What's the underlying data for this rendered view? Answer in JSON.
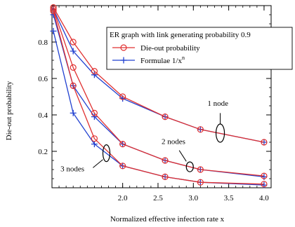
{
  "chart_data": {
    "type": "line",
    "title": "",
    "xlabel": "Normalized effective infection rate x",
    "ylabel": "Die-out probability",
    "xlim": [
      1.0,
      4.1
    ],
    "ylim": [
      0.0,
      1.0
    ],
    "x_ticks": [
      2.0,
      2.5,
      3.0,
      3.5,
      4.0
    ],
    "x_tick_labels": [
      "2.0",
      "2.5",
      "3.0",
      "3.5",
      "4.0"
    ],
    "y_ticks": [
      0.2,
      0.4,
      0.6,
      0.8
    ],
    "y_tick_labels": [
      "0.2",
      "0.4",
      "0.6",
      "0.8"
    ],
    "colors": {
      "die_out": "#e03030",
      "formula": "#2040d0"
    },
    "legend": {
      "title": "ER graph with link generating probability 0.9",
      "placement": "top-right",
      "entries": [
        {
          "label": "Die-out probability",
          "marker": "circle",
          "series": "die-out"
        },
        {
          "label": "Formulae 1/x",
          "sup": "n",
          "marker": "plus",
          "series": "formula"
        }
      ]
    },
    "annotations": [
      {
        "text": "1 node",
        "data_x": 3.2,
        "data_y": 0.45
      },
      {
        "text": "2 nodes",
        "data_x": 2.55,
        "data_y": 0.24
      },
      {
        "text": "3 nodes",
        "data_x": 1.12,
        "data_y": 0.09
      }
    ],
    "series": [
      {
        "group": "1 node",
        "kind": "die-out",
        "x": [
          1.02,
          1.3,
          1.6,
          2.0,
          2.6,
          3.1,
          4.0
        ],
        "y": [
          0.99,
          0.8,
          0.64,
          0.5,
          0.39,
          0.32,
          0.25
        ]
      },
      {
        "group": "1 node",
        "kind": "formula",
        "x": [
          1.02,
          1.3,
          1.6,
          2.0,
          2.6,
          3.1,
          4.0
        ],
        "y": [
          0.98,
          0.75,
          0.62,
          0.49,
          0.39,
          0.32,
          0.25
        ]
      },
      {
        "group": "2 nodes",
        "kind": "die-out",
        "x": [
          1.02,
          1.3,
          1.6,
          2.0,
          2.6,
          3.1,
          4.0
        ],
        "y": [
          0.98,
          0.66,
          0.41,
          0.24,
          0.15,
          0.1,
          0.065
        ]
      },
      {
        "group": "2 nodes",
        "kind": "formula",
        "x": [
          1.02,
          1.3,
          1.6,
          2.0,
          2.6,
          3.1,
          4.0
        ],
        "y": [
          0.95,
          0.56,
          0.39,
          0.24,
          0.15,
          0.1,
          0.06
        ]
      },
      {
        "group": "3 nodes",
        "kind": "die-out",
        "x": [
          1.02,
          1.3,
          1.6,
          2.0,
          2.6,
          3.1,
          4.0
        ],
        "y": [
          0.97,
          0.56,
          0.27,
          0.12,
          0.06,
          0.03,
          0.02
        ]
      },
      {
        "group": "3 nodes",
        "kind": "formula",
        "x": [
          1.02,
          1.3,
          1.6,
          2.0,
          2.6,
          3.1,
          4.0
        ],
        "y": [
          0.86,
          0.41,
          0.24,
          0.12,
          0.06,
          0.03,
          0.015
        ]
      }
    ]
  }
}
